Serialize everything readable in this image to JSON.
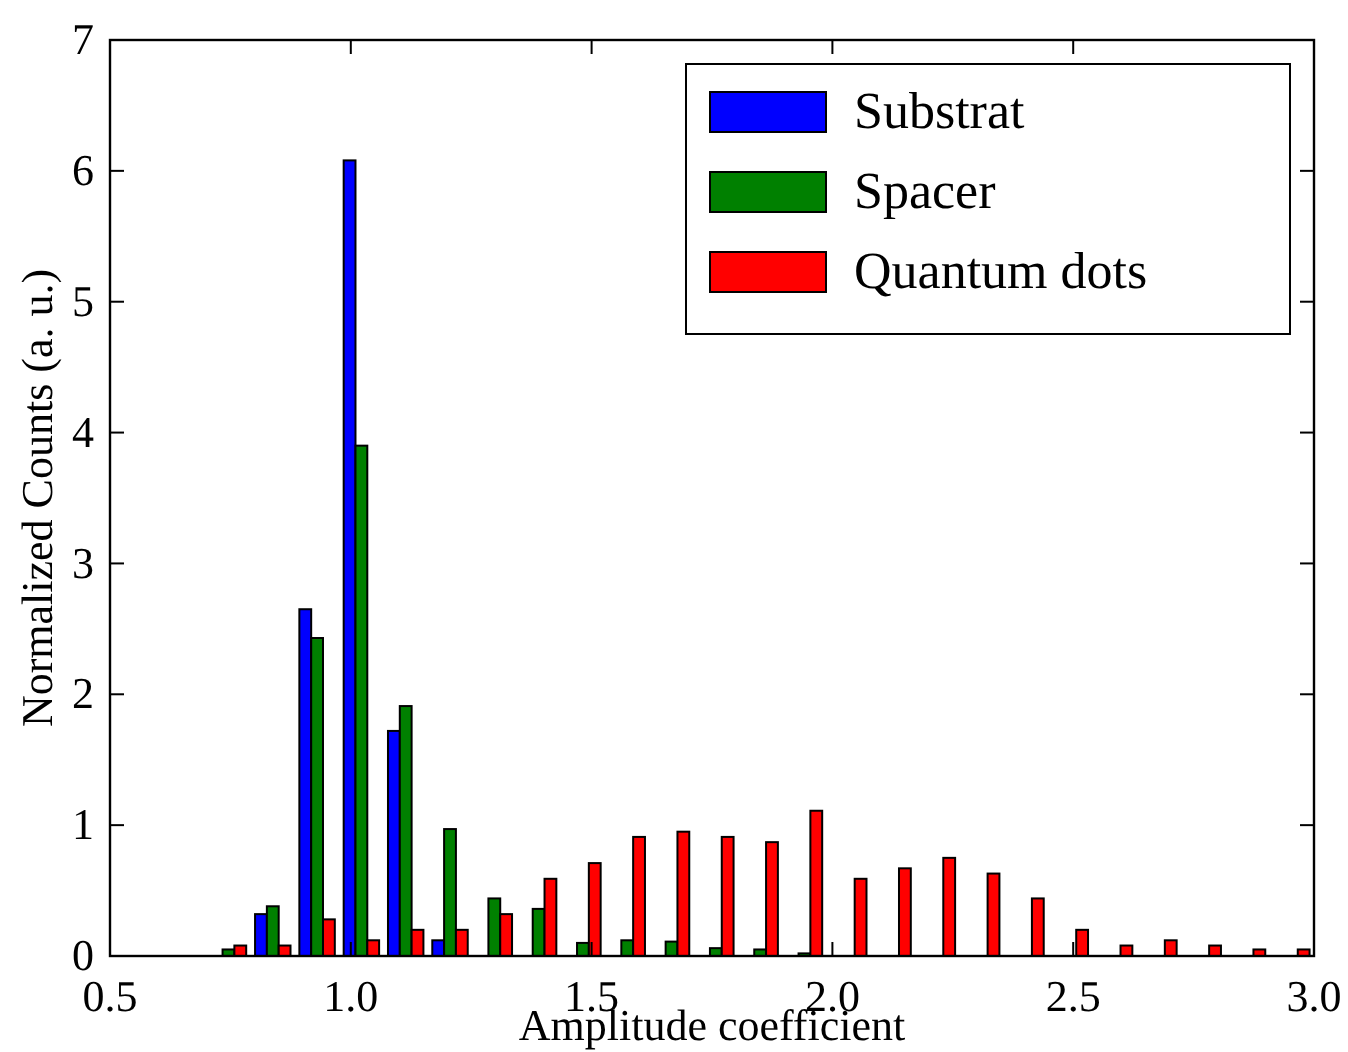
{
  "chart_data": {
    "type": "histogram",
    "xlabel": "Amplitude coefficient",
    "ylabel": "Normalized Counts (a. u.)",
    "bins": [
      0.7,
      0.792,
      0.884,
      0.976,
      1.068,
      1.16,
      1.252,
      1.344,
      1.436,
      1.528,
      1.62,
      1.712,
      1.804,
      1.896,
      1.988,
      2.08,
      2.172,
      2.264,
      2.356,
      2.448,
      2.54,
      2.632,
      2.724,
      2.816,
      2.908,
      3.0
    ],
    "series": [
      {
        "name": "Substrat",
        "color": "#0000ff",
        "values": [
          0,
          0.32,
          2.65,
          6.08,
          1.72,
          0.12,
          0,
          0,
          0,
          0,
          0,
          0,
          0,
          0,
          0,
          0,
          0,
          0,
          0,
          0,
          0,
          0,
          0,
          0,
          0
        ]
      },
      {
        "name": "Spacer",
        "color": "#008000",
        "values": [
          0.05,
          0.38,
          2.43,
          3.9,
          1.91,
          0.97,
          0.44,
          0.36,
          0.1,
          0.12,
          0.11,
          0.06,
          0.05,
          0.02,
          0,
          0,
          0,
          0,
          0,
          0,
          0,
          0,
          0,
          0,
          0
        ]
      },
      {
        "name": "Quantum dots",
        "color": "#ff0000",
        "values": [
          0.08,
          0.08,
          0.28,
          0.12,
          0.2,
          0.2,
          0.32,
          0.59,
          0.71,
          0.91,
          0.95,
          0.91,
          0.87,
          1.11,
          0.59,
          0.67,
          0.75,
          0.63,
          0.44,
          0.2,
          0.08,
          0.12,
          0.08,
          0.05,
          0.05
        ]
      }
    ],
    "xlim": [
      0.5,
      3.0
    ],
    "ylim": [
      0,
      7
    ],
    "xticks": [
      {
        "value": 0.5,
        "label": "0.5"
      },
      {
        "value": 1,
        "label": "1.0"
      },
      {
        "value": 1.5,
        "label": "1.5"
      },
      {
        "value": 2,
        "label": "2.0"
      },
      {
        "value": 2.5,
        "label": "2.5"
      },
      {
        "value": 3,
        "label": "3.0"
      }
    ],
    "yticks": [
      0,
      1,
      2,
      3,
      4,
      5,
      6,
      7
    ],
    "legend": "top right",
    "grid": false
  }
}
